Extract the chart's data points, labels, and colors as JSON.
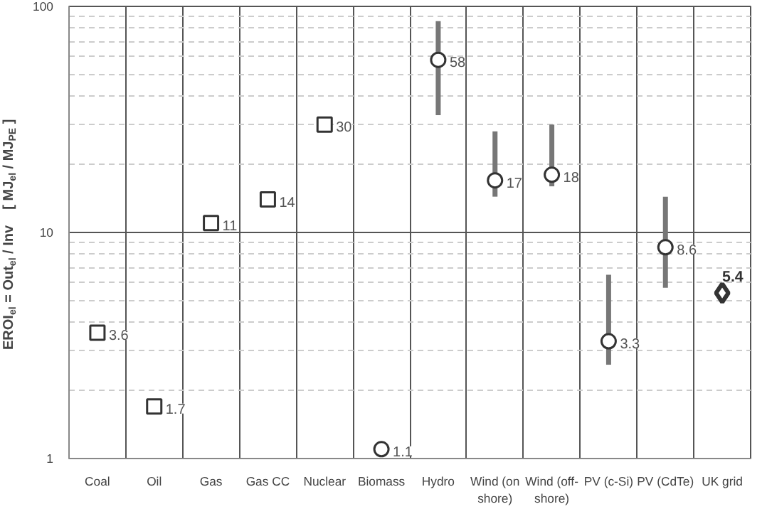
{
  "chart_data": {
    "type": "scatter",
    "ylabel": "EROI$_{el}$ = Out$_{el}$ / Inv    [ MJ$_{el}$ / MJ$_{PE}$ ]",
    "categories": [
      "Coal",
      "Oil",
      "Gas",
      "Gas CC",
      "Nuclear",
      "Biomass",
      "Hydro",
      "Wind (on shore)",
      "Wind (off-shore)",
      "PV (c-Si)",
      "PV (CdTe)",
      "UK grid"
    ],
    "series": [
      {
        "color": "#333333",
        "marker": "square",
        "values": [
          3.6,
          1.7,
          11,
          14,
          30,
          null,
          null,
          null,
          null,
          null,
          null,
          null
        ]
      },
      {
        "color": "#333333",
        "marker": "circle",
        "values": [
          null,
          null,
          null,
          null,
          null,
          1.1,
          58,
          17,
          18,
          3.3,
          8.6,
          null
        ],
        "errors": [
          null,
          null,
          null,
          null,
          null,
          null,
          [
            33,
            86
          ],
          [
            14.4,
            28
          ],
          [
            16,
            30
          ],
          [
            2.6,
            6.5
          ],
          [
            5.7,
            14.4
          ],
          null
        ]
      },
      {
        "color": "#333333",
        "marker": "diamond",
        "values": [
          null,
          null,
          null,
          null,
          null,
          null,
          null,
          null,
          null,
          null,
          null,
          5.4
        ]
      }
    ],
    "log": true,
    "ylim": [
      1,
      100
    ],
    "yticks": [
      1,
      10,
      100
    ],
    "grid": true,
    "data_labels": true
  }
}
